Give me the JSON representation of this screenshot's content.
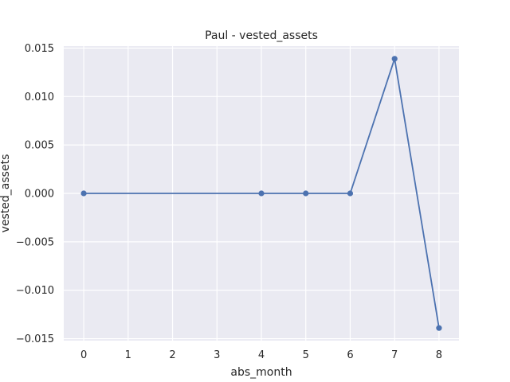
{
  "chart_data": {
    "type": "line",
    "title": "Paul - vested_assets",
    "xlabel": "abs_month",
    "ylabel": "vested_assets",
    "xlim": [
      -0.45,
      8.45
    ],
    "ylim": [
      -0.0152,
      0.0152
    ],
    "x_ticks": [
      0,
      1,
      2,
      3,
      4,
      5,
      6,
      7,
      8
    ],
    "y_ticks": [
      -0.015,
      -0.01,
      -0.005,
      0.0,
      0.005,
      0.01,
      0.015
    ],
    "y_tick_labels": [
      "−0.015",
      "−0.010",
      "−0.005",
      "0.000",
      "0.005",
      "0.010",
      "0.015"
    ],
    "grid": true,
    "legend": "none",
    "series": [
      {
        "x": [
          0,
          4,
          5,
          6,
          7,
          8
        ],
        "y": [
          0.0,
          0.0,
          0.0,
          0.0,
          0.0139,
          -0.0139
        ],
        "color": "#4c72b0",
        "marker": "circle"
      }
    ],
    "background_color": "#eaeaf2",
    "grid_color": "#ffffff"
  }
}
